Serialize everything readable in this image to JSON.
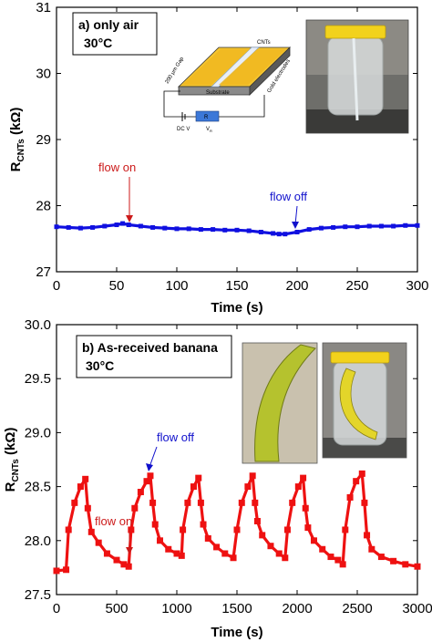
{
  "chart_data": [
    {
      "type": "line",
      "panel_label": "a) only air",
      "condition": "30°C",
      "xlabel": "Time (s)",
      "ylabel": "R",
      "ylabel_sub": "CNTs",
      "ylabel_unit": " (kΩ)",
      "xlim": [
        0,
        300
      ],
      "ylim": [
        27,
        31
      ],
      "xticks": [
        0,
        50,
        100,
        150,
        200,
        250,
        300
      ],
      "yticks": [
        27,
        28,
        29,
        30,
        31
      ],
      "grid": false,
      "series": [
        {
          "color": "#1010e0",
          "x": [
            0,
            10,
            20,
            30,
            40,
            50,
            55,
            60,
            70,
            80,
            90,
            100,
            110,
            120,
            130,
            140,
            150,
            160,
            170,
            180,
            185,
            190,
            200,
            210,
            220,
            230,
            240,
            250,
            260,
            270,
            280,
            290,
            300
          ],
          "y": [
            27.68,
            27.67,
            27.66,
            27.67,
            27.69,
            27.71,
            27.73,
            27.71,
            27.69,
            27.67,
            27.66,
            27.65,
            27.65,
            27.64,
            27.64,
            27.63,
            27.63,
            27.62,
            27.6,
            27.58,
            27.57,
            27.57,
            27.6,
            27.64,
            27.66,
            27.67,
            27.68,
            27.68,
            27.69,
            27.69,
            27.69,
            27.7,
            27.7
          ]
        }
      ],
      "annotations": [
        {
          "text": "flow on",
          "color": "#cc1a1a",
          "x": 56,
          "y": 27.73
        },
        {
          "text": "flow off",
          "color": "#1010cc",
          "x": 200,
          "y": 27.6
        }
      ],
      "inset": {
        "labels": [
          "CNTs",
          "200 μm Gap",
          "Substrate",
          "Gold electrodes",
          "DC V",
          "R",
          "V",
          "R"
        ]
      }
    },
    {
      "type": "line",
      "panel_label": "b) As-received banana",
      "condition": "30°C",
      "xlabel": "Time (s)",
      "ylabel": "R",
      "ylabel_sub": "CNTs",
      "ylabel_unit": " (kΩ)",
      "xlim": [
        0,
        3000
      ],
      "ylim": [
        27.5,
        30.0
      ],
      "xticks": [
        0,
        500,
        1000,
        1500,
        2000,
        2500,
        3000
      ],
      "yticks": [
        "27.5",
        "28.0",
        "28.5",
        "29.0",
        "29.5",
        "30.0"
      ],
      "grid": false,
      "series": [
        {
          "color": "#ee1111",
          "x": [
            0,
            80,
            100,
            150,
            200,
            240,
            260,
            290,
            350,
            420,
            500,
            560,
            600,
            620,
            650,
            700,
            750,
            780,
            800,
            820,
            860,
            930,
            1000,
            1040,
            1050,
            1090,
            1140,
            1180,
            1200,
            1220,
            1260,
            1330,
            1400,
            1470,
            1500,
            1540,
            1590,
            1630,
            1650,
            1670,
            1710,
            1780,
            1850,
            1900,
            1920,
            1960,
            2010,
            2050,
            2070,
            2090,
            2140,
            2210,
            2280,
            2340,
            2380,
            2400,
            2440,
            2490,
            2540,
            2560,
            2580,
            2620,
            2700,
            2800,
            2900,
            3000
          ],
          "y": [
            27.72,
            27.73,
            28.1,
            28.35,
            28.5,
            28.57,
            28.3,
            28.08,
            27.98,
            27.88,
            27.82,
            27.78,
            27.76,
            28.1,
            28.3,
            28.45,
            28.55,
            28.6,
            28.35,
            28.15,
            28.0,
            27.92,
            27.88,
            27.86,
            28.1,
            28.35,
            28.5,
            28.58,
            28.35,
            28.15,
            28.02,
            27.94,
            27.88,
            27.84,
            28.1,
            28.35,
            28.5,
            28.6,
            28.35,
            28.18,
            28.05,
            27.95,
            27.88,
            27.84,
            28.1,
            28.35,
            28.5,
            28.58,
            28.3,
            28.12,
            28.0,
            27.92,
            27.85,
            27.82,
            27.78,
            28.1,
            28.4,
            28.55,
            28.62,
            28.35,
            28.05,
            27.92,
            27.85,
            27.81,
            27.78,
            27.76
          ]
        }
      ],
      "annotations": [
        {
          "text": "flow on",
          "color": "#cc1a1a",
          "x": 600,
          "y": 27.78
        },
        {
          "text": "flow off",
          "color": "#1010cc",
          "x": 780,
          "y": 28.6
        }
      ]
    }
  ],
  "colors": {
    "flow_on": "#cc1a1a",
    "flow_off": "#1010cc",
    "series_a": "#1010e0",
    "series_b": "#ee1111"
  }
}
